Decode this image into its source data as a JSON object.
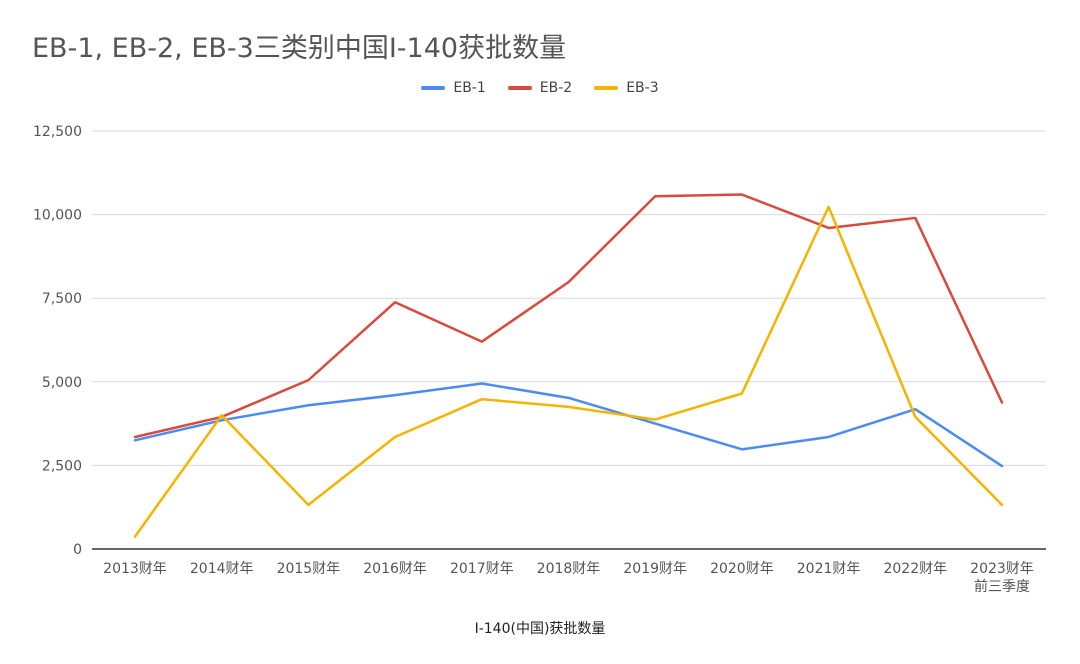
{
  "chart_data": {
    "type": "line",
    "title": "EB-1, EB-2, EB-3三类别中国I-140获批数量",
    "xlabel": "I-140(中国)获批数量",
    "ylabel": "",
    "ylim": [
      0,
      12500
    ],
    "yticks": [
      "0",
      "2,500",
      "5,000",
      "7,500",
      "10,000",
      "12,500"
    ],
    "ytick_values": [
      0,
      2500,
      5000,
      7500,
      10000,
      12500
    ],
    "categories": [
      "2013财年",
      "2014财年",
      "2015财年",
      "2016财年",
      "2017财年",
      "2018财年",
      "2019财年",
      "2020财年",
      "2021财年",
      "2022财年",
      "2023财年\n前三季度"
    ],
    "grid": true,
    "legend_position": "top",
    "series": [
      {
        "name": "EB-1",
        "color": "#4c8cf2",
        "values": [
          3250,
          3850,
          4300,
          4600,
          4950,
          4520,
          3750,
          2980,
          3350,
          4180,
          2480
        ]
      },
      {
        "name": "EB-2",
        "color": "#d94a3d",
        "values": [
          3350,
          3950,
          5050,
          7380,
          6200,
          7980,
          10550,
          10600,
          9600,
          9900,
          4380
        ]
      },
      {
        "name": "EB-3",
        "color": "#f4b400",
        "values": [
          370,
          4000,
          1320,
          3350,
          4480,
          4250,
          3870,
          4650,
          10230,
          3950,
          1320
        ]
      }
    ]
  }
}
